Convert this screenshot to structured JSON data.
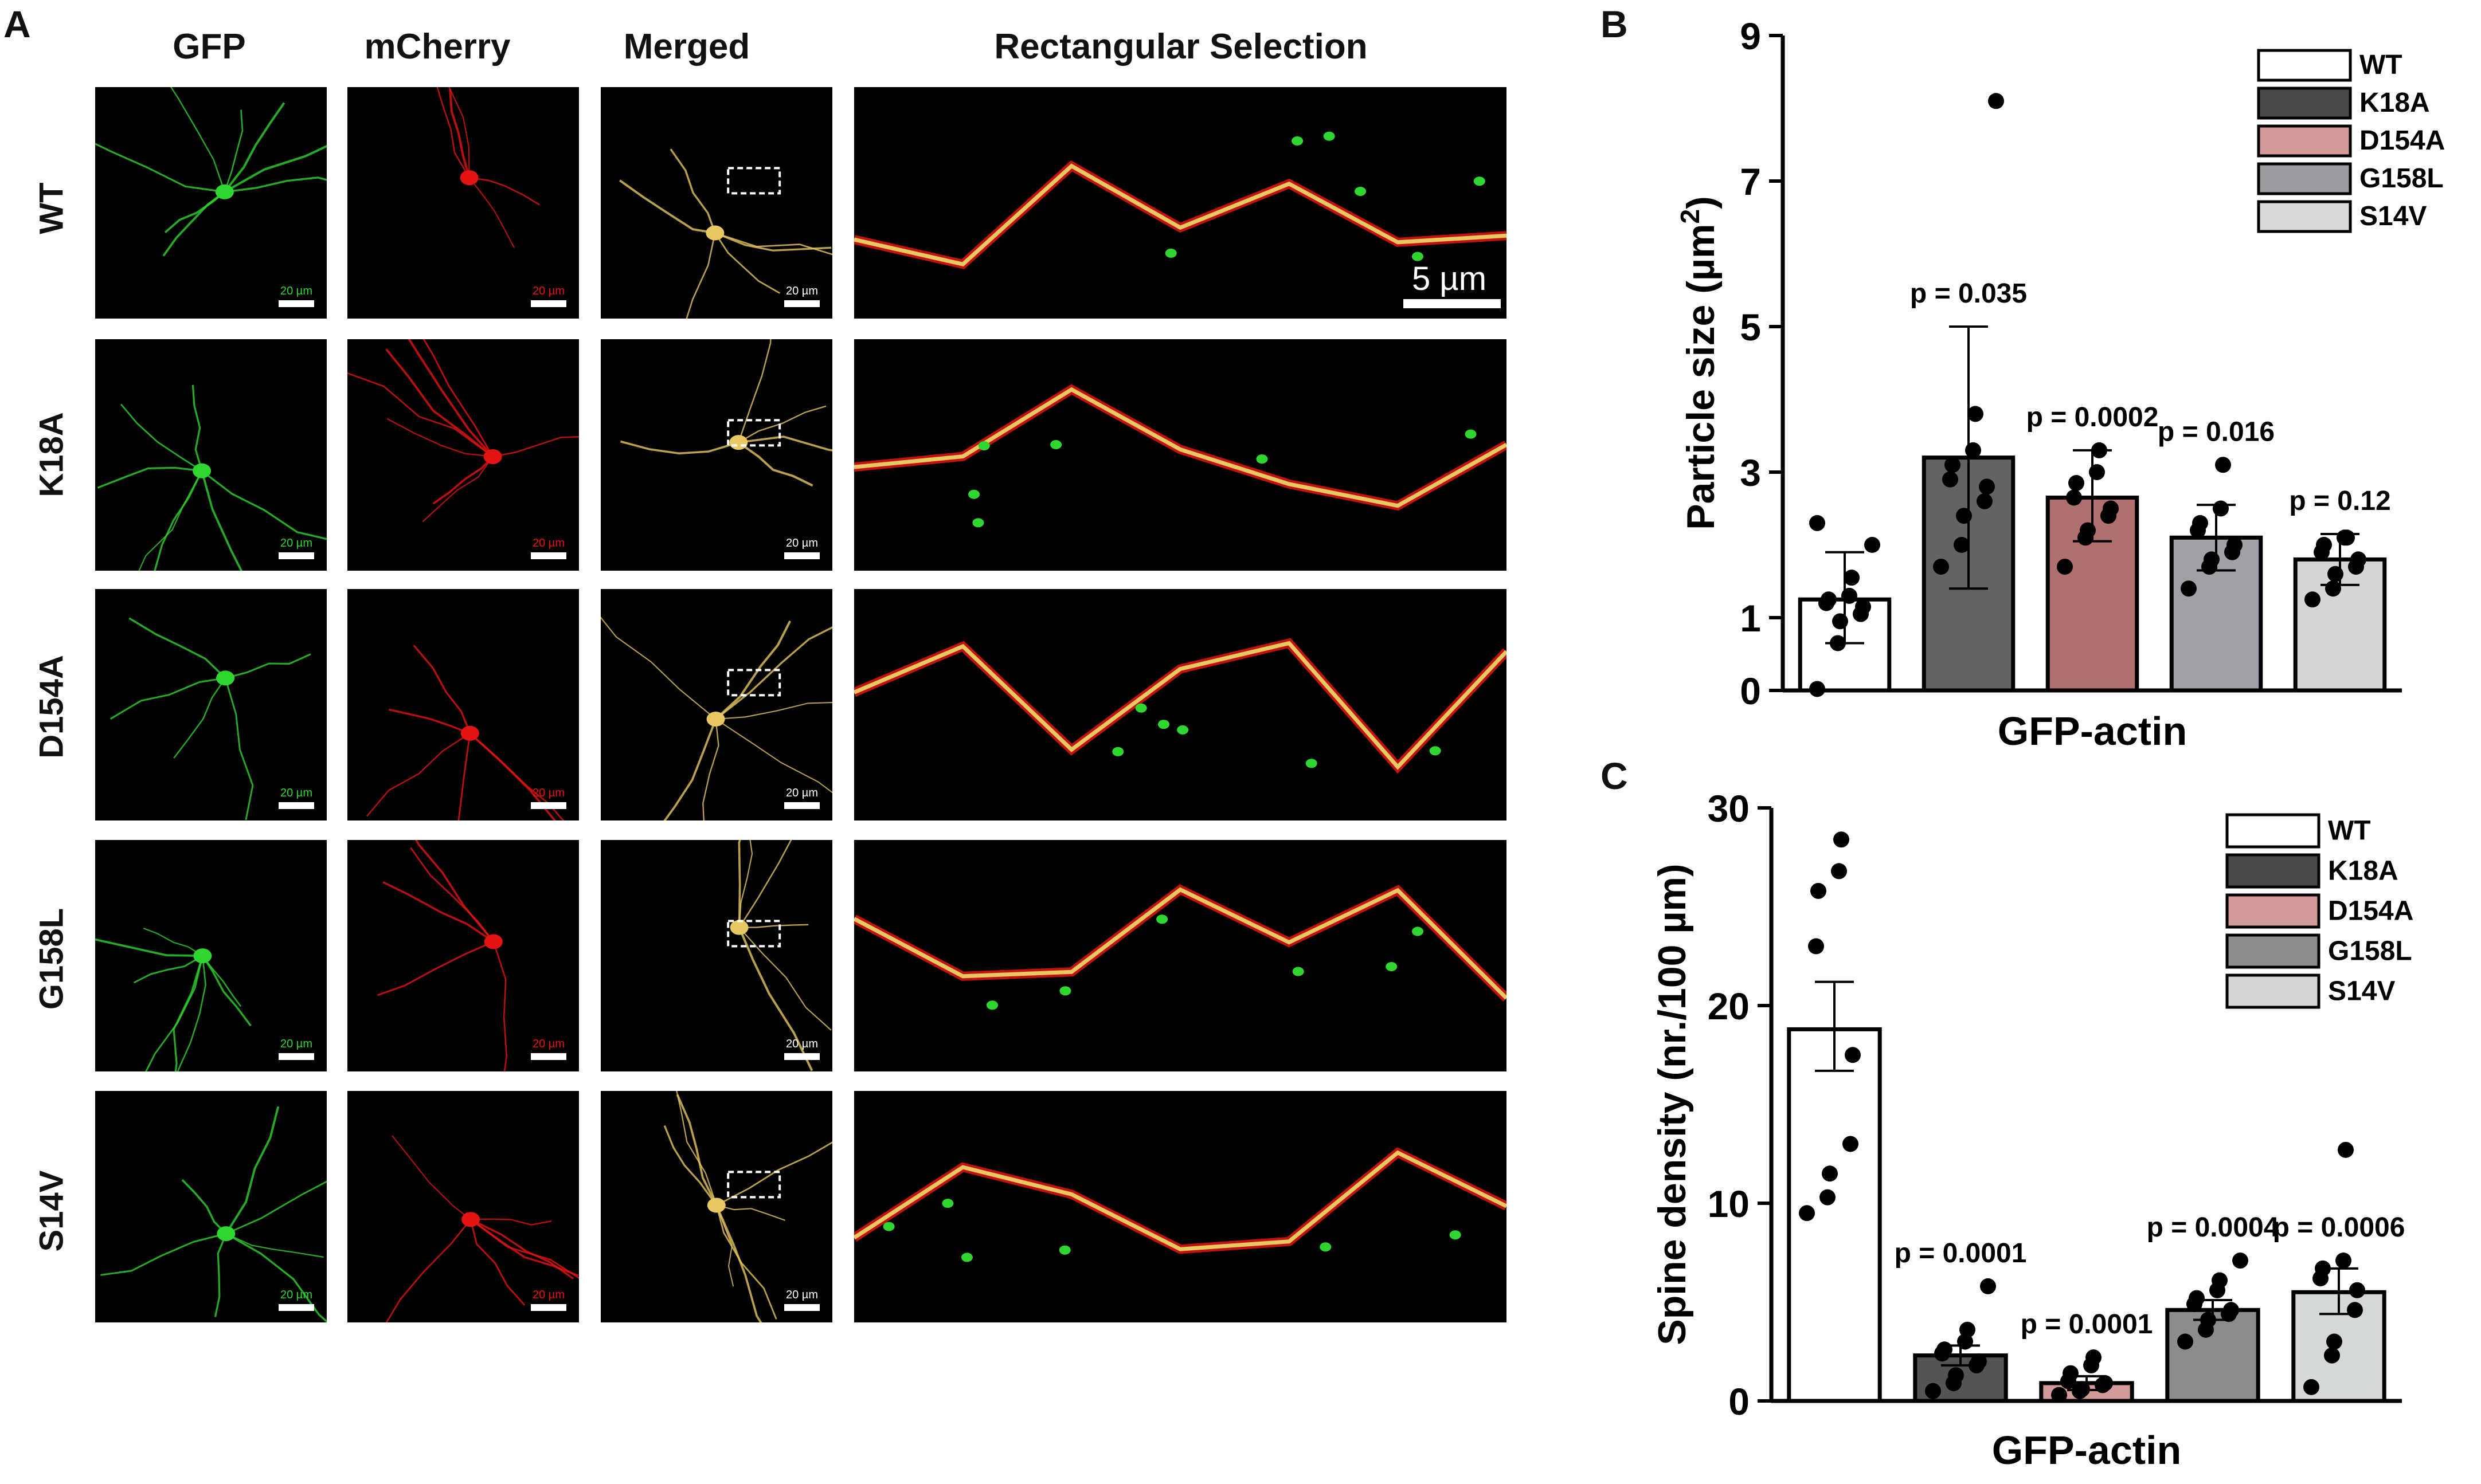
{
  "panel_labels": {
    "a": "A",
    "b": "B",
    "c": "C"
  },
  "micrograph": {
    "columns": [
      "GFP",
      "mCherry",
      "Merged",
      "Rectangular Selection"
    ],
    "rows": [
      "WT",
      "K18A",
      "D154A",
      "G158L",
      "S14V"
    ],
    "small_scale_label": "20 µm",
    "zoom_scale_label": "5 µm",
    "colors": {
      "gfp": "#2fd62f",
      "mcherry": "#e41414",
      "merged": "#e8c860",
      "background": "#000000"
    }
  },
  "chart_data": [
    {
      "type": "bar",
      "panel": "B",
      "xlabel": "GFP-actin",
      "ylabel": "Particle size (µm²)",
      "ylabel_main": "Particle size (µm",
      "ylabel_sup": "2",
      "ylabel_close": ")",
      "ylim": [
        0,
        9
      ],
      "yticks": [
        0,
        1,
        3,
        5,
        7,
        9
      ],
      "categories": [
        "WT",
        "K18A",
        "D154A",
        "G158L",
        "S14V"
      ],
      "values": [
        1.25,
        3.2,
        2.65,
        2.1,
        1.8
      ],
      "error_low": [
        0.65,
        1.4,
        2.05,
        1.65,
        1.45
      ],
      "error_high": [
        1.9,
        5.0,
        3.3,
        2.55,
        2.15
      ],
      "colors": [
        "#ffffff",
        "#636363",
        "#b07070",
        "#a0a0a6",
        "#d6d6d6"
      ],
      "legend_colors": [
        "#ffffff",
        "#484848",
        "#d49a9a",
        "#9b9ba0",
        "#dadada"
      ],
      "legend": "top-right",
      "p_values": [
        "",
        "p = 0.035",
        "p = 0.0002",
        "p = 0.016",
        "p = 0.12"
      ],
      "points": [
        [
          0.02,
          0.65,
          0.95,
          1.05,
          1.15,
          1.2,
          1.25,
          1.3,
          1.55,
          2.0,
          2.3
        ],
        [
          1.7,
          2.0,
          2.4,
          2.6,
          2.8,
          2.9,
          3.1,
          3.3,
          3.8,
          8.1
        ],
        [
          1.7,
          2.1,
          2.2,
          2.4,
          2.5,
          2.65,
          2.85,
          3.0,
          3.3
        ],
        [
          1.4,
          1.7,
          1.8,
          1.9,
          2.0,
          2.2,
          2.3,
          2.5,
          3.1
        ],
        [
          1.25,
          1.4,
          1.6,
          1.7,
          1.8,
          1.9,
          2.0,
          2.1,
          2.1
        ]
      ]
    },
    {
      "type": "bar",
      "panel": "C",
      "xlabel": "GFP-actin",
      "ylabel": "Spine density (nr./100 µm)",
      "ylim": [
        0,
        30
      ],
      "yticks": [
        0,
        10,
        20,
        30
      ],
      "categories": [
        "WT",
        "K18A",
        "D154A",
        "G158L",
        "S14V"
      ],
      "values": [
        18.8,
        2.3,
        0.9,
        4.6,
        5.5
      ],
      "error_low": [
        16.7,
        1.8,
        0.55,
        4.1,
        4.4
      ],
      "error_high": [
        21.2,
        2.8,
        1.25,
        5.1,
        6.7
      ],
      "colors": [
        "#ffffff",
        "#545454",
        "#d49a9a",
        "#8c8c8c",
        "#d4d8d8"
      ],
      "legend_colors": [
        "#ffffff",
        "#484848",
        "#d49a9a",
        "#8c8c8c",
        "#d6d6d6"
      ],
      "legend": "top-right",
      "p_values": [
        "",
        "p = 0.0001",
        "p = 0.0001",
        "p = 0.0004",
        "p = 0.0006"
      ],
      "points": [
        [
          9.5,
          10.3,
          11.5,
          13.0,
          17.5,
          23.0,
          25.8,
          26.8,
          28.4
        ],
        [
          0.5,
          0.9,
          1.3,
          1.8,
          2.0,
          2.4,
          2.6,
          3.0,
          3.6,
          5.8
        ],
        [
          0.3,
          0.5,
          0.6,
          0.8,
          0.9,
          1.0,
          1.4,
          1.8,
          2.2
        ],
        [
          3.0,
          3.6,
          4.1,
          4.4,
          4.6,
          4.9,
          5.2,
          5.6,
          6.1,
          7.1
        ],
        [
          0.7,
          2.3,
          3.0,
          4.6,
          5.6,
          6.2,
          6.7,
          7.1,
          12.7
        ]
      ]
    }
  ]
}
